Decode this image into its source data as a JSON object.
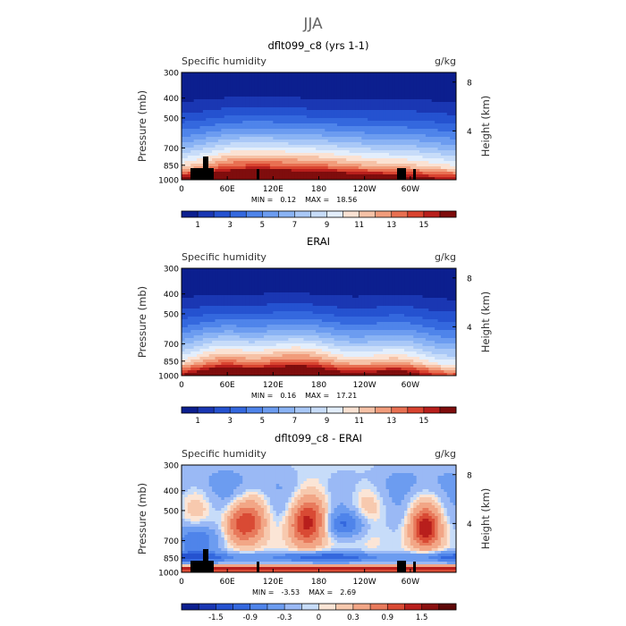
{
  "figure": {
    "title": "JJA"
  },
  "chart_data": [
    {
      "type": "heatmap",
      "title": "dflt099_c8 (yrs 1-1)",
      "variable": "Specific humidity",
      "units": "g/kg",
      "ylabel": "Pressure (mb)",
      "ylabel_right": "Height (km)",
      "x_ticks": [
        "0",
        "60E",
        "120E",
        "180",
        "120W",
        "60W"
      ],
      "x_tick_values": [
        0,
        60,
        120,
        180,
        240,
        300
      ],
      "xlim": [
        0,
        360
      ],
      "y_ticks": [
        "300",
        "400",
        "500",
        "700",
        "850",
        "1000"
      ],
      "y_tick_values": [
        300,
        400,
        500,
        700,
        850,
        1000
      ],
      "ylim": [
        1000,
        300
      ],
      "height_ticks": [
        "8",
        "4"
      ],
      "height_tick_values": [
        8,
        4
      ],
      "min_label": "MIN =",
      "min_value": "0.12",
      "max_label": "MAX =",
      "max_value": "18.56",
      "colorbar_ticks": [
        "1",
        "3",
        "5",
        "7",
        "9",
        "11",
        "13",
        "15"
      ],
      "colorbar_levels": [
        1,
        2,
        3,
        4,
        5,
        6,
        7,
        8,
        9,
        10,
        11,
        12,
        13,
        14,
        15,
        16
      ],
      "colors": [
        "#0c1f8f",
        "#1a37b3",
        "#2552d0",
        "#3468de",
        "#4f84ea",
        "#6c9cf0",
        "#8ab3f4",
        "#a9c8f7",
        "#c7dcf9",
        "#e3eefc",
        "#fbe2d3",
        "#f6c2a7",
        "#f19c7b",
        "#e87052",
        "#d94430",
        "#b81f1c",
        "#7f0d0d"
      ]
    },
    {
      "type": "heatmap",
      "title": "ERAI",
      "variable": "Specific humidity",
      "units": "g/kg",
      "ylabel": "Pressure (mb)",
      "ylabel_right": "Height (km)",
      "x_ticks": [
        "0",
        "60E",
        "120E",
        "180",
        "120W",
        "60W"
      ],
      "x_tick_values": [
        0,
        60,
        120,
        180,
        240,
        300
      ],
      "xlim": [
        0,
        360
      ],
      "y_ticks": [
        "300",
        "400",
        "500",
        "700",
        "850",
        "1000"
      ],
      "y_tick_values": [
        300,
        400,
        500,
        700,
        850,
        1000
      ],
      "ylim": [
        1000,
        300
      ],
      "height_ticks": [
        "8",
        "4"
      ],
      "height_tick_values": [
        8,
        4
      ],
      "min_label": "MIN =",
      "min_value": "0.16",
      "max_label": "MAX =",
      "max_value": "17.21",
      "colorbar_ticks": [
        "1",
        "3",
        "5",
        "7",
        "9",
        "11",
        "13",
        "15"
      ],
      "colorbar_levels": [
        1,
        2,
        3,
        4,
        5,
        6,
        7,
        8,
        9,
        10,
        11,
        12,
        13,
        14,
        15,
        16
      ],
      "colors": [
        "#0c1f8f",
        "#1a37b3",
        "#2552d0",
        "#3468de",
        "#4f84ea",
        "#6c9cf0",
        "#8ab3f4",
        "#a9c8f7",
        "#c7dcf9",
        "#e3eefc",
        "#fbe2d3",
        "#f6c2a7",
        "#f19c7b",
        "#e87052",
        "#d94430",
        "#b81f1c",
        "#7f0d0d"
      ]
    },
    {
      "type": "heatmap",
      "title": "dflt099_c8 - ERAI",
      "variable": "Specific humidity",
      "units": "g/kg",
      "ylabel": "Pressure (mb)",
      "ylabel_right": "Height (km)",
      "x_ticks": [
        "0",
        "60E",
        "120E",
        "180",
        "120W",
        "60W"
      ],
      "x_tick_values": [
        0,
        60,
        120,
        180,
        240,
        300
      ],
      "xlim": [
        0,
        360
      ],
      "y_ticks": [
        "300",
        "400",
        "500",
        "700",
        "850",
        "1000"
      ],
      "y_tick_values": [
        300,
        400,
        500,
        700,
        850,
        1000
      ],
      "ylim": [
        1000,
        300
      ],
      "height_ticks": [
        "8",
        "4"
      ],
      "height_tick_values": [
        8,
        4
      ],
      "min_label": "MIN =",
      "min_value": "-3.53",
      "max_label": "MAX =",
      "max_value": "2.69",
      "colorbar_ticks": [
        "-1.5",
        "-0.9",
        "-0.3",
        "0",
        "0.3",
        "0.9",
        "1.5"
      ],
      "colorbar_levels": [
        -1.8,
        -1.5,
        -1.2,
        -0.9,
        -0.6,
        -0.3,
        -0.1,
        0,
        0.1,
        0.3,
        0.6,
        0.9,
        1.2,
        1.5,
        1.8
      ],
      "colors": [
        "#0c1f8f",
        "#1a37b3",
        "#2552d0",
        "#3468de",
        "#4f84ea",
        "#6c9cf0",
        "#9ab9f5",
        "#c7dcf9",
        "#fbe5d6",
        "#f7c9ae",
        "#f2a686",
        "#e87a5c",
        "#d94a34",
        "#b81f1c",
        "#8a1010",
        "#5e0808"
      ]
    }
  ]
}
